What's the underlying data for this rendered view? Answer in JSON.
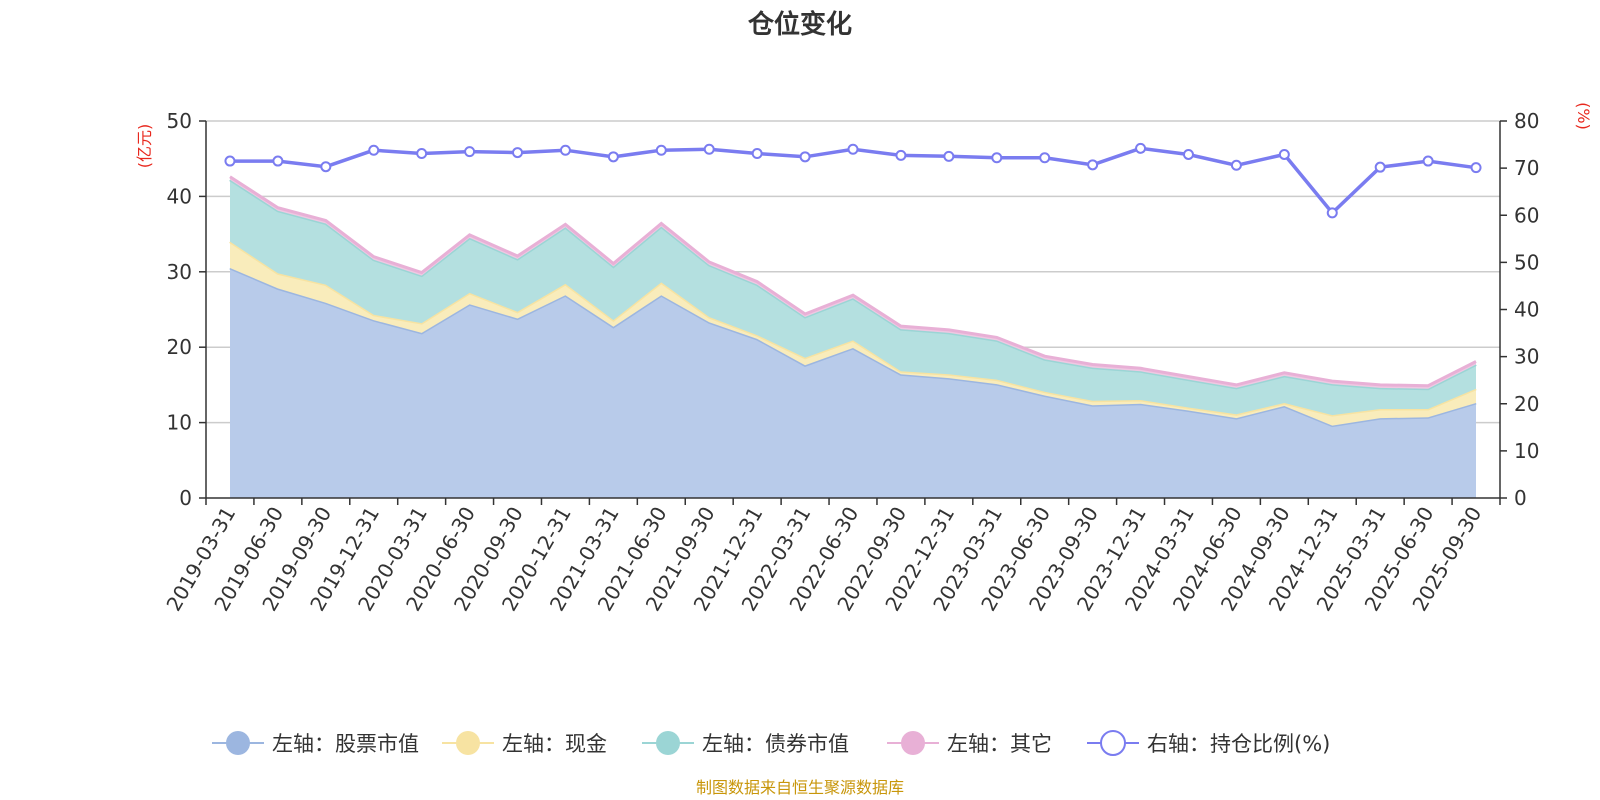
{
  "chart_data": {
    "type": "area",
    "title": "仓位变化",
    "left_unit": "(亿元)",
    "right_unit": "(%)",
    "left_ylim": [
      0,
      50
    ],
    "left_ticks": [
      0,
      10,
      20,
      30,
      40,
      50
    ],
    "right_ylim": [
      0,
      80
    ],
    "right_ticks": [
      0,
      10,
      20,
      30,
      40,
      50,
      60,
      70,
      80
    ],
    "categories": [
      "2019-03-31",
      "2019-06-30",
      "2019-09-30",
      "2019-12-31",
      "2020-03-31",
      "2020-06-30",
      "2020-09-30",
      "2020-12-31",
      "2021-03-31",
      "2021-06-30",
      "2021-09-30",
      "2021-12-31",
      "2022-03-31",
      "2022-06-30",
      "2022-09-30",
      "2022-12-31",
      "2023-03-31",
      "2023-06-30",
      "2023-09-30",
      "2023-12-31",
      "2024-03-31",
      "2024-06-30",
      "2024-09-30",
      "2024-12-31",
      "2025-03-31",
      "2025-06-30",
      "2025-09-30"
    ],
    "stacked_series": [
      {
        "name": "左轴：股票市值",
        "color": "#9cb6e0",
        "fill": "#b8cbea",
        "values": [
          30.5,
          27.8,
          25.9,
          23.6,
          21.9,
          25.7,
          23.8,
          26.9,
          22.7,
          26.9,
          23.3,
          21.1,
          17.6,
          19.9,
          16.4,
          15.9,
          15.1,
          13.6,
          12.3,
          12.5,
          11.6,
          10.6,
          12.2,
          9.6,
          10.6,
          10.7,
          12.6
        ]
      },
      {
        "name": "左轴：现金",
        "color": "#f7e3a2",
        "fill": "#f9ecbb",
        "values": [
          3.5,
          2.0,
          2.4,
          0.7,
          1.3,
          1.5,
          0.9,
          1.5,
          0.9,
          1.7,
          0.7,
          0.5,
          1.0,
          1.0,
          0.4,
          0.5,
          0.6,
          0.5,
          0.6,
          0.5,
          0.4,
          0.5,
          0.4,
          1.4,
          1.2,
          1.1,
          1.9
        ]
      },
      {
        "name": "左轴：债券市值",
        "color": "#9bd5d5",
        "fill": "#b4e0e0",
        "values": [
          8.2,
          8.3,
          8.1,
          7.3,
          6.3,
          7.3,
          7.0,
          7.5,
          7.1,
          7.4,
          6.9,
          6.7,
          5.4,
          5.6,
          5.6,
          5.5,
          5.2,
          4.3,
          4.4,
          3.8,
          3.7,
          3.5,
          3.6,
          4.1,
          2.8,
          2.7,
          3.2
        ]
      },
      {
        "name": "左轴：其它",
        "color": "#e8b0d6",
        "fill": "#efc8e2",
        "values": [
          0.4,
          0.4,
          0.4,
          0.4,
          0.4,
          0.4,
          0.4,
          0.4,
          0.4,
          0.4,
          0.4,
          0.4,
          0.4,
          0.4,
          0.4,
          0.4,
          0.4,
          0.4,
          0.4,
          0.4,
          0.4,
          0.4,
          0.4,
          0.4,
          0.4,
          0.4,
          0.4
        ]
      }
    ],
    "line_series": {
      "name": "右轴：持仓比例(%)",
      "color": "#7a7cf0",
      "values": [
        71.5,
        71.5,
        70.3,
        73.8,
        73.1,
        73.5,
        73.3,
        73.8,
        72.4,
        73.8,
        74.0,
        73.1,
        72.4,
        74.0,
        72.7,
        72.5,
        72.2,
        72.2,
        70.7,
        74.2,
        72.9,
        70.6,
        72.9,
        60.5,
        70.2,
        71.5,
        70.1
      ]
    },
    "legend": [
      "左轴：股票市值",
      "左轴：现金",
      "左轴：债券市值",
      "左轴：其它",
      "右轴：持仓比例(%)"
    ],
    "source": "制图数据来自恒生聚源数据库"
  }
}
